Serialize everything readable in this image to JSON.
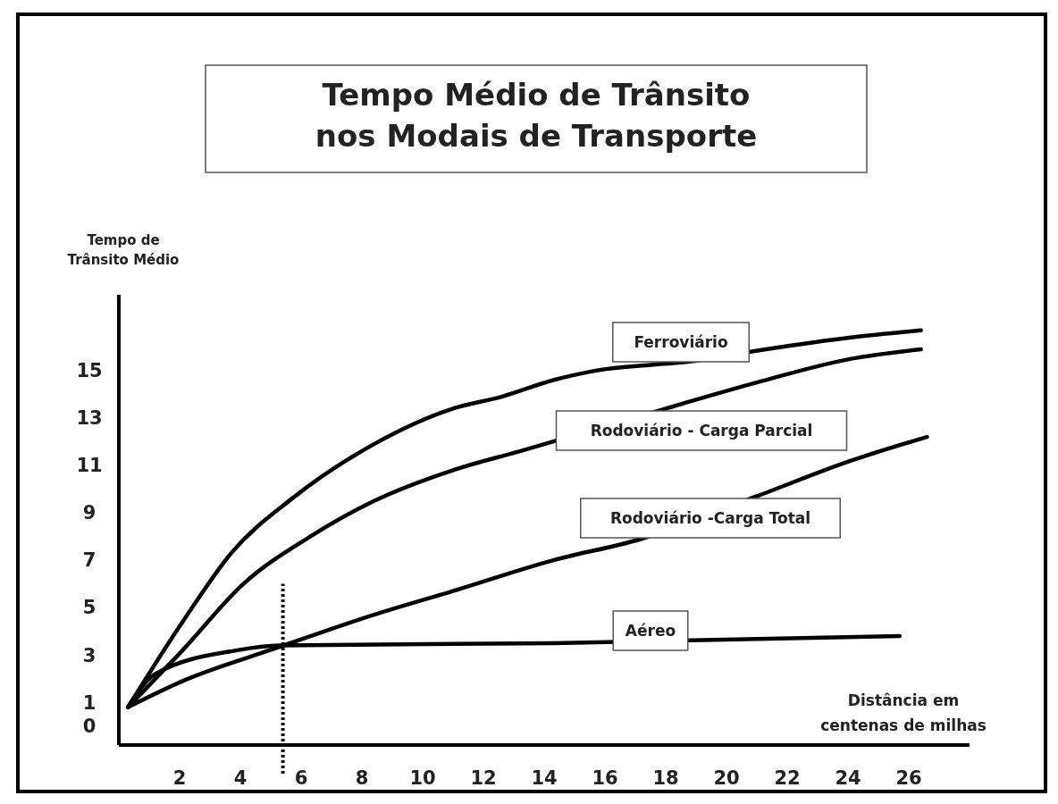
{
  "chart_data": {
    "type": "line",
    "title": "Tempo Médio de Trânsito nos Modais de Transporte",
    "xlabel": "Distância em centenas de milhas",
    "ylabel": "Tempo de Trânsito Médio",
    "xlim": [
      0,
      28
    ],
    "xticks": [
      2,
      4,
      6,
      8,
      10,
      12,
      14,
      16,
      18,
      20,
      22,
      24,
      26
    ],
    "ylim": [
      -0.8,
      18.2
    ],
    "yticks": [
      0,
      1,
      3,
      5,
      7,
      9,
      11,
      13,
      15
    ],
    "grid": false,
    "legend": false,
    "marker": "none",
    "line_style": "solid",
    "series": [
      {
        "name": "Ferroviário",
        "color": "#000000",
        "x": [
          0.3,
          2.1,
          3.7,
          5.7,
          8.4,
          11,
          12.6,
          14.3,
          15.7,
          18.9,
          21.3,
          24.1,
          26.4
        ],
        "values": [
          0.8,
          4.4,
          7.3,
          9.6,
          11.9,
          13.4,
          13.9,
          14.6,
          15,
          15.4,
          15.9,
          16.4,
          16.7
        ]
      },
      {
        "name": "Rodoviário - Carga Parcial",
        "color": "#000000",
        "x": [
          0.3,
          2.1,
          4.1,
          6.3,
          8.4,
          11,
          13.2,
          18,
          21,
          24.1,
          26.4
        ],
        "values": [
          0.8,
          3.2,
          6,
          8,
          9.5,
          10.8,
          11.6,
          13.4,
          14.5,
          15.5,
          15.9
        ]
      },
      {
        "name": "Rodoviário -Carga Total",
        "color": "#000000",
        "x": [
          0.3,
          2.1,
          5.2,
          8.4,
          11,
          14.3,
          17.2,
          21,
          24.1,
          26.6
        ],
        "values": [
          0.8,
          1.9,
          3.3,
          4.7,
          5.7,
          7,
          7.9,
          9.7,
          11.2,
          12.2
        ]
      },
      {
        "name": "Aéreo",
        "color": "#000000",
        "x": [
          0.3,
          1.2,
          3.9,
          5.3,
          14.3,
          25.7
        ],
        "values": [
          0.8,
          2.2,
          3.2,
          3.4,
          3.5,
          3.8
        ]
      }
    ],
    "ref_lines": [
      {
        "axis": "x",
        "value": 5.4,
        "line_style": "dotted",
        "color": "#000000"
      }
    ]
  }
}
